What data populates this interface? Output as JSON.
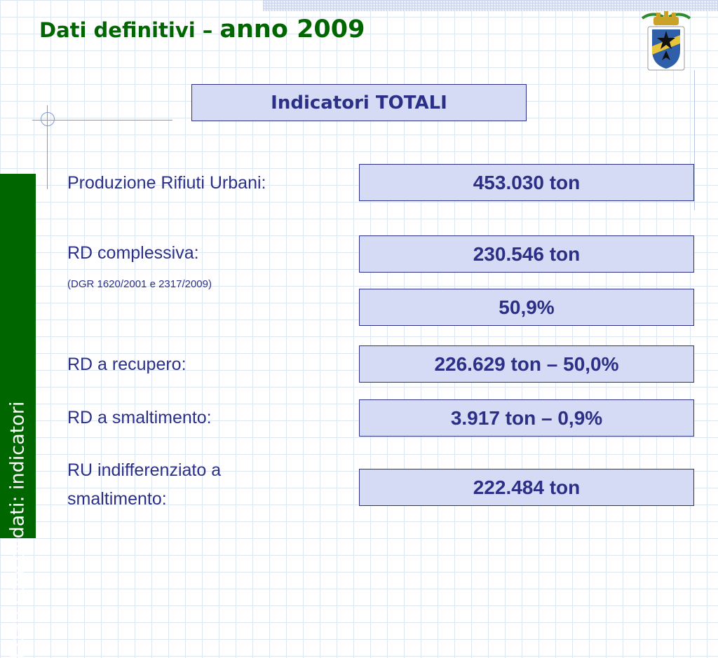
{
  "title": {
    "part1": "Dati definitivi – ",
    "part2": "anno 2009"
  },
  "sidebar": {
    "text": "I dati consolidati: indicatori"
  },
  "header": {
    "label": "Indicatori TOTALI"
  },
  "rows": [
    {
      "label": "Produzione Rifiuti Urbani:",
      "value": "453.030 ton"
    },
    {
      "label": "RD complessiva:",
      "note": "(DGR 1620/2001 e 2317/2009)",
      "value": "230.546 ton",
      "value2": "50,9%"
    },
    {
      "label": "RD a recupero:",
      "value": "226.629 ton – 50,0%"
    },
    {
      "label": "RD a smaltimento:",
      "value": "3.917 ton – 0,9%"
    },
    {
      "label_line1": "RU indifferenziato a",
      "label_line2": "smaltimento:",
      "value": "222.484 ton"
    }
  ],
  "colors": {
    "title_green": "#006600",
    "navy": "#2b2f86",
    "box_fill": "#d5daf5"
  },
  "icons": {
    "crest": "provincial-coat-of-arms"
  }
}
